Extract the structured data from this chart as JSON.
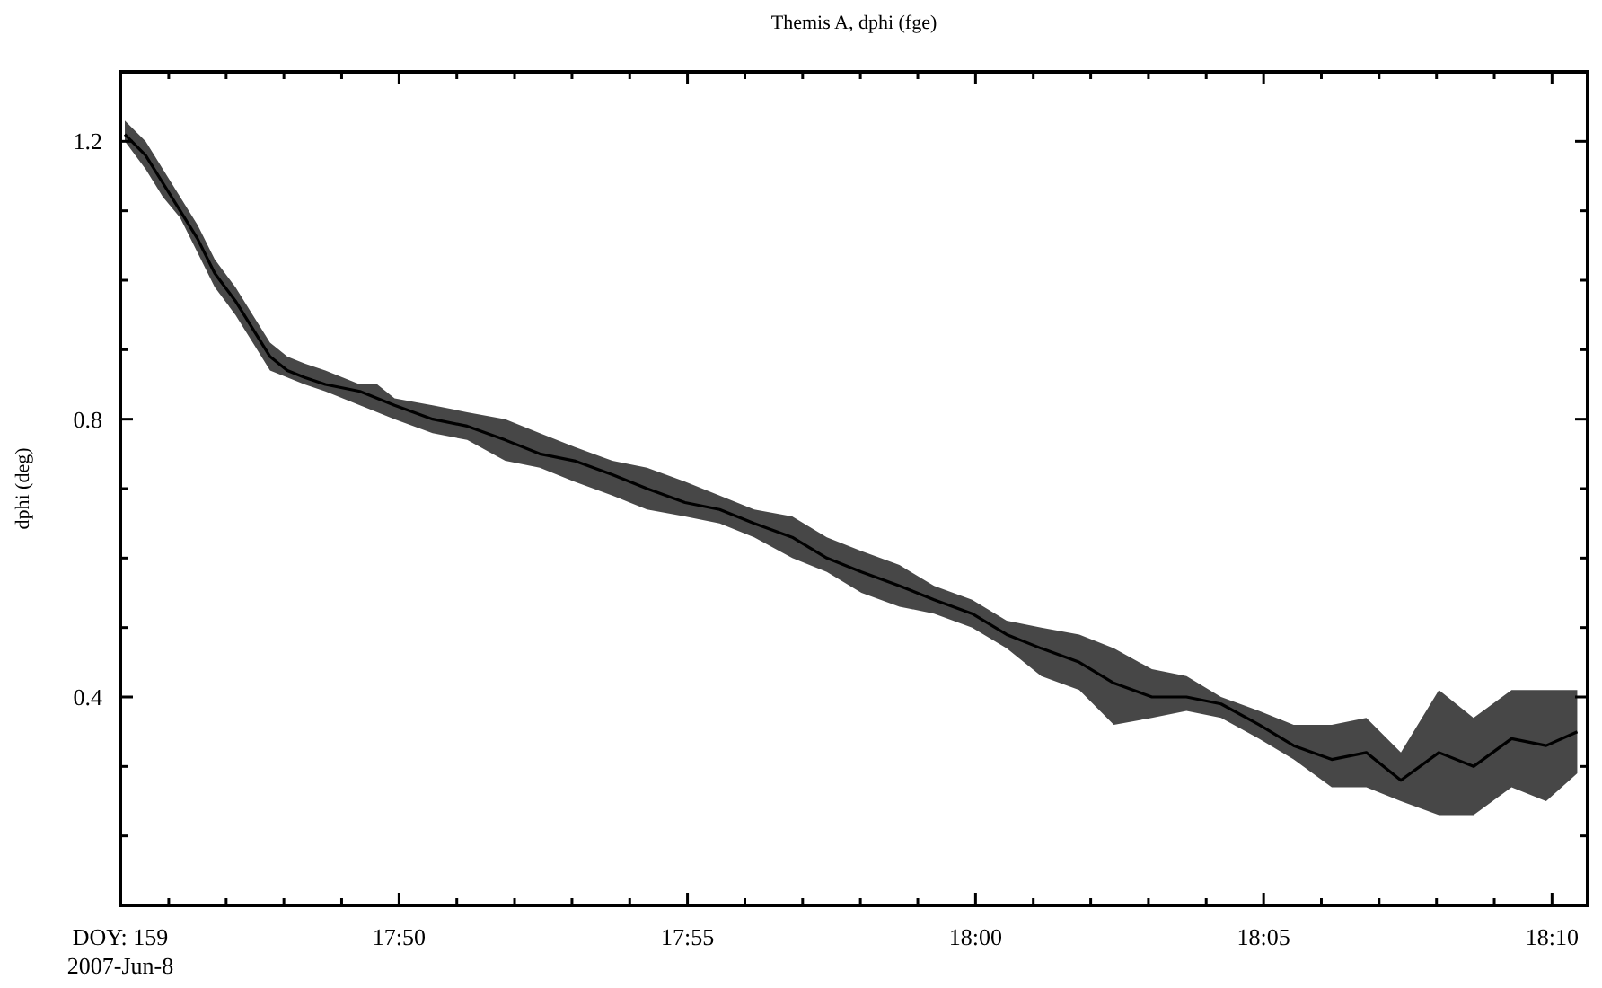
{
  "chart_data": {
    "type": "line",
    "title": "Themis A, dphi (fge)",
    "ylabel": "dphi (deg)",
    "xlim": [
      17.7527,
      18.177
    ],
    "ylim": [
      0.1,
      1.3
    ],
    "xticks": [
      {
        "value": 17.7527,
        "label": "DOY: 159\n2007-Jun-8"
      },
      {
        "value": 17.7667,
        "label": null
      },
      {
        "value": 17.7833,
        "label": null
      },
      {
        "value": 17.8,
        "label": null
      },
      {
        "value": 17.8167,
        "label": null
      },
      {
        "value": 17.8333,
        "label": "17:50"
      },
      {
        "value": 17.85,
        "label": null
      },
      {
        "value": 17.8667,
        "label": null
      },
      {
        "value": 17.8833,
        "label": null
      },
      {
        "value": 17.9,
        "label": null
      },
      {
        "value": 17.9167,
        "label": "17:55"
      },
      {
        "value": 17.9333,
        "label": null
      },
      {
        "value": 17.95,
        "label": null
      },
      {
        "value": 17.9667,
        "label": null
      },
      {
        "value": 17.9833,
        "label": null
      },
      {
        "value": 18.0,
        "label": "18:00"
      },
      {
        "value": 18.0167,
        "label": null
      },
      {
        "value": 18.0333,
        "label": null
      },
      {
        "value": 18.05,
        "label": null
      },
      {
        "value": 18.0667,
        "label": null
      },
      {
        "value": 18.0833,
        "label": "18:05"
      },
      {
        "value": 18.1,
        "label": null
      },
      {
        "value": 18.1167,
        "label": null
      },
      {
        "value": 18.1333,
        "label": null
      },
      {
        "value": 18.15,
        "label": null
      },
      {
        "value": 18.1667,
        "label": "18:10"
      }
    ],
    "yticks": [
      {
        "value": 0.2,
        "label": null
      },
      {
        "value": 0.3,
        "label": null
      },
      0.4,
      {
        "value": 0.5,
        "label": null
      },
      {
        "value": 0.6,
        "label": null
      },
      {
        "value": 0.7,
        "label": null
      },
      0.8,
      {
        "value": 0.9,
        "label": null
      },
      {
        "value": 1.0,
        "label": null
      },
      {
        "value": 1.1,
        "label": null
      },
      1.2
    ],
    "marker": "none",
    "line_style": "solid",
    "grid": false,
    "series": [
      {
        "color": "#000000",
        "x": [
          17.754,
          17.76,
          17.765,
          17.77,
          17.775,
          17.78,
          17.786,
          17.791,
          17.796,
          17.801,
          17.806,
          17.812,
          17.822,
          17.827,
          17.832,
          17.843,
          17.853,
          17.864,
          17.874,
          17.884,
          17.895,
          17.905,
          17.916,
          17.926,
          17.936,
          17.947,
          17.957,
          17.967,
          17.978,
          17.988,
          17.999,
          18.009,
          18.019,
          18.03,
          18.04,
          18.051,
          18.061,
          18.071,
          18.082,
          18.092,
          18.103,
          18.113,
          18.123,
          18.134,
          18.144,
          18.155,
          18.165,
          18.174
        ],
        "values": [
          1.21,
          1.18,
          1.14,
          1.1,
          1.06,
          1.01,
          0.97,
          0.93,
          0.89,
          0.87,
          0.86,
          0.85,
          0.84,
          0.83,
          0.82,
          0.8,
          0.79,
          0.77,
          0.75,
          0.74,
          0.72,
          0.7,
          0.68,
          0.67,
          0.65,
          0.63,
          0.6,
          0.58,
          0.56,
          0.54,
          0.52,
          0.49,
          0.47,
          0.45,
          0.42,
          0.4,
          0.4,
          0.39,
          0.36,
          0.33,
          0.31,
          0.32,
          0.28,
          0.32,
          0.3,
          0.34,
          0.33,
          0.35
        ],
        "upper": [
          1.23,
          1.2,
          1.16,
          1.12,
          1.08,
          1.03,
          0.99,
          0.95,
          0.91,
          0.89,
          0.88,
          0.87,
          0.85,
          0.85,
          0.83,
          0.82,
          0.81,
          0.8,
          0.78,
          0.76,
          0.74,
          0.73,
          0.71,
          0.69,
          0.67,
          0.66,
          0.63,
          0.61,
          0.59,
          0.56,
          0.54,
          0.51,
          0.5,
          0.49,
          0.47,
          0.44,
          0.43,
          0.4,
          0.38,
          0.36,
          0.36,
          0.37,
          0.32,
          0.41,
          0.37,
          0.41,
          0.41,
          0.41
        ],
        "lower": [
          1.2,
          1.16,
          1.12,
          1.09,
          1.04,
          0.99,
          0.95,
          0.91,
          0.87,
          0.86,
          0.85,
          0.84,
          0.82,
          0.81,
          0.8,
          0.78,
          0.77,
          0.74,
          0.73,
          0.71,
          0.69,
          0.67,
          0.66,
          0.65,
          0.63,
          0.6,
          0.58,
          0.55,
          0.53,
          0.52,
          0.5,
          0.47,
          0.43,
          0.41,
          0.36,
          0.37,
          0.38,
          0.37,
          0.34,
          0.31,
          0.27,
          0.27,
          0.25,
          0.23,
          0.23,
          0.27,
          0.25,
          0.29
        ]
      }
    ]
  }
}
